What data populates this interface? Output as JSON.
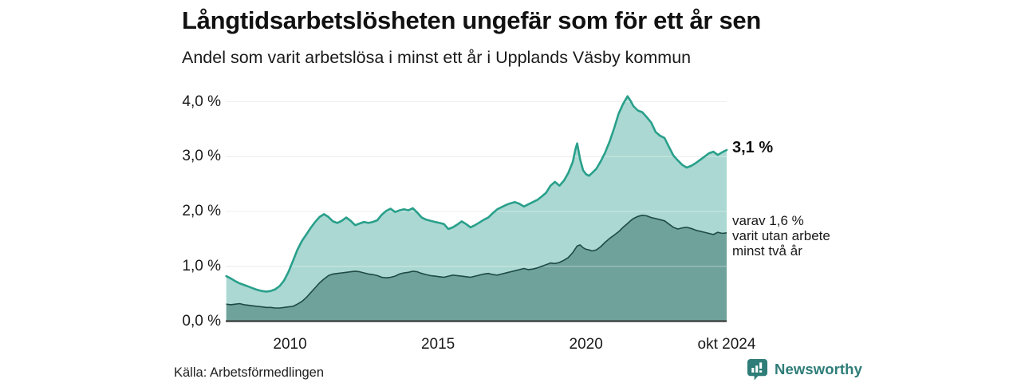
{
  "chart_data": {
    "type": "area",
    "title": "Långtidsarbetslösheten ungefär som för ett år sen",
    "subtitle": "Andel som varit arbetslösa i minst ett år i Upplands Väsby kommun",
    "source": "Källa: Arbetsförmedlingen",
    "unit": "%",
    "xlim": [
      2007.83,
      2024.75
    ],
    "ylim": [
      0,
      4.35
    ],
    "grid": true,
    "legend_position": "none",
    "x_ticks": [
      {
        "label": "2010",
        "x": 2010
      },
      {
        "label": "2015",
        "x": 2015
      },
      {
        "label": "2020",
        "x": 2020
      },
      {
        "label": "okt 2024",
        "x": 2024.75
      }
    ],
    "y_ticks": [
      {
        "label": "0,0 %",
        "value": 0
      },
      {
        "label": "1,0 %",
        "value": 1
      },
      {
        "label": "2,0 %",
        "value": 2
      },
      {
        "label": "3,0 %",
        "value": 3
      },
      {
        "label": "4,0 %",
        "value": 4
      }
    ],
    "x": [
      2007.85,
      2008.0,
      2008.15,
      2008.3,
      2008.45,
      2008.6,
      2008.75,
      2008.9,
      2009.05,
      2009.2,
      2009.35,
      2009.5,
      2009.65,
      2009.8,
      2009.95,
      2010.1,
      2010.25,
      2010.4,
      2010.55,
      2010.7,
      2010.85,
      2011.0,
      2011.15,
      2011.3,
      2011.45,
      2011.6,
      2011.75,
      2011.9,
      2012.05,
      2012.2,
      2012.35,
      2012.5,
      2012.65,
      2012.8,
      2012.95,
      2013.1,
      2013.25,
      2013.4,
      2013.55,
      2013.7,
      2013.85,
      2014.0,
      2014.15,
      2014.3,
      2014.45,
      2014.6,
      2014.75,
      2014.9,
      2015.05,
      2015.2,
      2015.35,
      2015.5,
      2015.65,
      2015.8,
      2015.95,
      2016.1,
      2016.25,
      2016.4,
      2016.55,
      2016.7,
      2016.85,
      2017.0,
      2017.15,
      2017.3,
      2017.45,
      2017.6,
      2017.75,
      2017.9,
      2018.05,
      2018.2,
      2018.35,
      2018.5,
      2018.65,
      2018.8,
      2018.95,
      2019.1,
      2019.25,
      2019.4,
      2019.55,
      2019.65,
      2019.7,
      2019.8,
      2019.9,
      2020.0,
      2020.1,
      2020.2,
      2020.35,
      2020.5,
      2020.65,
      2020.8,
      2020.95,
      2021.1,
      2021.25,
      2021.4,
      2021.5,
      2021.6,
      2021.75,
      2021.9,
      2022.05,
      2022.2,
      2022.35,
      2022.5,
      2022.65,
      2022.8,
      2022.95,
      2023.1,
      2023.25,
      2023.4,
      2023.55,
      2023.7,
      2023.85,
      2024.0,
      2024.15,
      2024.3,
      2024.45,
      2024.6,
      2024.75
    ],
    "series": [
      {
        "name": "minst ett år",
        "color": "#29a08b",
        "fill": "#abd8d2",
        "end_value": "3,1 %",
        "values": [
          0.82,
          0.78,
          0.73,
          0.69,
          0.66,
          0.63,
          0.6,
          0.57,
          0.55,
          0.54,
          0.55,
          0.58,
          0.64,
          0.74,
          0.9,
          1.1,
          1.3,
          1.46,
          1.58,
          1.7,
          1.81,
          1.9,
          1.95,
          1.9,
          1.82,
          1.79,
          1.83,
          1.89,
          1.83,
          1.75,
          1.78,
          1.81,
          1.79,
          1.81,
          1.84,
          1.94,
          2.01,
          2.05,
          1.99,
          2.02,
          2.04,
          2.02,
          2.06,
          1.98,
          1.89,
          1.85,
          1.83,
          1.81,
          1.79,
          1.77,
          1.68,
          1.71,
          1.76,
          1.82,
          1.77,
          1.71,
          1.75,
          1.8,
          1.85,
          1.89,
          1.97,
          2.04,
          2.08,
          2.12,
          2.15,
          2.17,
          2.14,
          2.09,
          2.13,
          2.17,
          2.21,
          2.27,
          2.34,
          2.47,
          2.54,
          2.47,
          2.56,
          2.7,
          2.9,
          3.15,
          3.24,
          2.95,
          2.75,
          2.68,
          2.65,
          2.7,
          2.78,
          2.92,
          3.08,
          3.28,
          3.52,
          3.78,
          3.96,
          4.1,
          4.02,
          3.92,
          3.84,
          3.81,
          3.72,
          3.62,
          3.45,
          3.38,
          3.34,
          3.18,
          3.02,
          2.93,
          2.85,
          2.8,
          2.83,
          2.88,
          2.94,
          3.0,
          3.06,
          3.09,
          3.03,
          3.08,
          3.12
        ]
      },
      {
        "name": "minst två år",
        "color": "#1d4a44",
        "fill": "#70a29c",
        "end_value": "1,6 %",
        "values": [
          0.31,
          0.3,
          0.31,
          0.32,
          0.3,
          0.29,
          0.28,
          0.27,
          0.26,
          0.25,
          0.25,
          0.24,
          0.24,
          0.25,
          0.26,
          0.27,
          0.31,
          0.36,
          0.43,
          0.52,
          0.61,
          0.7,
          0.77,
          0.83,
          0.86,
          0.87,
          0.88,
          0.89,
          0.9,
          0.91,
          0.9,
          0.88,
          0.86,
          0.85,
          0.83,
          0.8,
          0.79,
          0.8,
          0.82,
          0.86,
          0.88,
          0.89,
          0.91,
          0.9,
          0.87,
          0.85,
          0.83,
          0.82,
          0.81,
          0.8,
          0.82,
          0.84,
          0.83,
          0.82,
          0.81,
          0.8,
          0.82,
          0.84,
          0.86,
          0.87,
          0.85,
          0.84,
          0.86,
          0.88,
          0.9,
          0.92,
          0.94,
          0.96,
          0.94,
          0.95,
          0.97,
          1.0,
          1.03,
          1.06,
          1.05,
          1.07,
          1.11,
          1.16,
          1.25,
          1.33,
          1.37,
          1.39,
          1.34,
          1.31,
          1.3,
          1.28,
          1.3,
          1.36,
          1.44,
          1.51,
          1.57,
          1.63,
          1.71,
          1.78,
          1.83,
          1.87,
          1.91,
          1.93,
          1.92,
          1.89,
          1.87,
          1.85,
          1.83,
          1.77,
          1.71,
          1.68,
          1.7,
          1.71,
          1.69,
          1.66,
          1.64,
          1.62,
          1.6,
          1.58,
          1.62,
          1.6,
          1.61
        ]
      }
    ],
    "annotations": {
      "end_total": "3,1 %",
      "two_year_lines": [
        "varav 1,6 %",
        "varit utan arbete",
        "minst två år"
      ]
    },
    "colors": {
      "grid": "#e0e0e0",
      "grid_overlay": "rgba(255,255,255,0.42)",
      "axis": "#2b2b2b"
    }
  },
  "footer": {
    "brand": "Newsworthy"
  }
}
